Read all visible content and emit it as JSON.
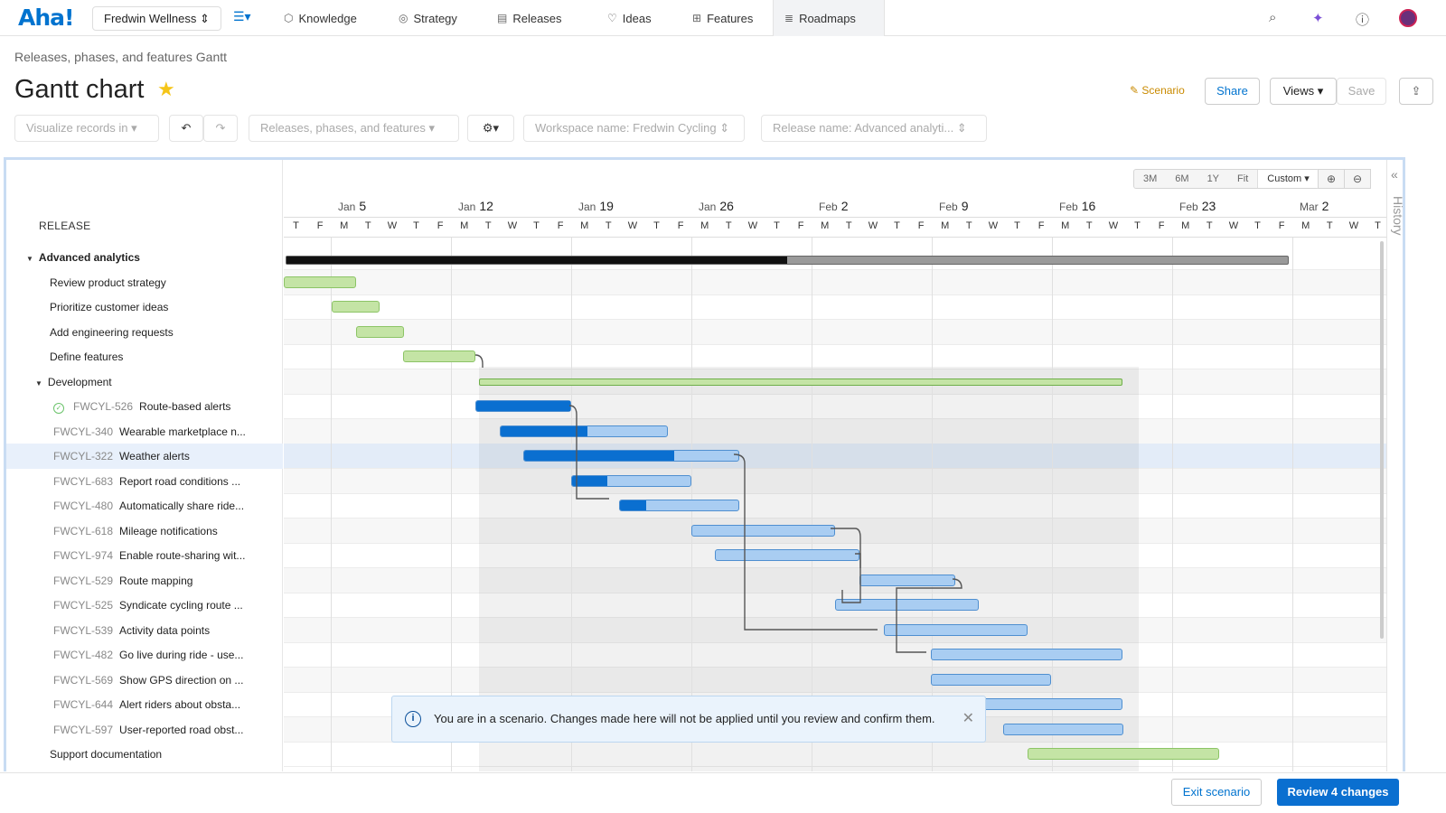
{
  "app": {
    "logo": "Aha!",
    "workspace": "Fredwin Wellness ⇕"
  },
  "nav": [
    {
      "label": "Knowledge",
      "icon": "⬡"
    },
    {
      "label": "Strategy",
      "icon": "◎"
    },
    {
      "label": "Releases",
      "icon": "▤"
    },
    {
      "label": "Ideas",
      "icon": "♡"
    },
    {
      "label": "Features",
      "icon": "⊞"
    },
    {
      "label": "Roadmaps",
      "icon": "≣"
    }
  ],
  "page": {
    "breadcrumb": "Releases, phases, and features Gantt",
    "title": "Gantt chart",
    "scenario": "Scenario",
    "share": "Share",
    "views": "Views ▾",
    "save": "Save"
  },
  "toolbar": {
    "visualize": "Visualize records in ▾",
    "records": "Releases, phases, and features ▾",
    "workspace": "Workspace name: Fredwin Cycling ⇕",
    "release": "Release name: Advanced analyti... ⇕"
  },
  "grid": {
    "header": "RELEASE",
    "zoom": [
      "3M",
      "6M",
      "1Y",
      "Fit"
    ],
    "custom": "Custom ▾",
    "history": "History"
  },
  "weeks": [
    {
      "m": "Jan",
      "d": "5"
    },
    {
      "m": "Jan",
      "d": "12"
    },
    {
      "m": "Jan",
      "d": "19"
    },
    {
      "m": "Jan",
      "d": "26"
    },
    {
      "m": "Feb",
      "d": "2"
    },
    {
      "m": "Feb",
      "d": "9"
    },
    {
      "m": "Feb",
      "d": "16"
    },
    {
      "m": "Feb",
      "d": "23"
    },
    {
      "m": "Mar",
      "d": "2"
    }
  ],
  "days": [
    "T",
    "F",
    "M",
    "T",
    "W",
    "T",
    "F",
    "M",
    "T",
    "W",
    "T",
    "F",
    "M",
    "T",
    "W",
    "T",
    "F",
    "M",
    "T",
    "W",
    "T",
    "F",
    "M",
    "T",
    "W",
    "T",
    "F",
    "M",
    "T",
    "W",
    "T",
    "F",
    "M",
    "T",
    "W",
    "T",
    "F",
    "M",
    "T",
    "W",
    "T",
    "F",
    "M",
    "T",
    "W",
    "T"
  ],
  "rows": [
    {
      "key": "",
      "label": "Advanced analytics",
      "level": 0,
      "type": "release"
    },
    {
      "key": "",
      "label": "Review product strategy",
      "level": 1,
      "type": "phase"
    },
    {
      "key": "",
      "label": "Prioritize customer ideas",
      "level": 1,
      "type": "phase"
    },
    {
      "key": "",
      "label": "Add engineering requests",
      "level": 1,
      "type": "phase"
    },
    {
      "key": "",
      "label": "Define features",
      "level": 1,
      "type": "phase"
    },
    {
      "key": "",
      "label": "Development",
      "level": 1,
      "type": "group"
    },
    {
      "key": "FWCYL-526",
      "label": "Route-based alerts",
      "level": 2,
      "type": "done"
    },
    {
      "key": "FWCYL-340",
      "label": "Wearable marketplace n...",
      "level": 2,
      "type": "feature"
    },
    {
      "key": "FWCYL-322",
      "label": "Weather alerts",
      "level": 2,
      "type": "feature",
      "selected": true
    },
    {
      "key": "FWCYL-683",
      "label": "Report road conditions ...",
      "level": 2,
      "type": "feature"
    },
    {
      "key": "FWCYL-480",
      "label": "Automatically share ride...",
      "level": 2,
      "type": "feature"
    },
    {
      "key": "FWCYL-618",
      "label": "Mileage notifications",
      "level": 2,
      "type": "feature"
    },
    {
      "key": "FWCYL-974",
      "label": "Enable route-sharing wit...",
      "level": 2,
      "type": "feature"
    },
    {
      "key": "FWCYL-529",
      "label": "Route mapping",
      "level": 2,
      "type": "feature"
    },
    {
      "key": "FWCYL-525",
      "label": "Syndicate cycling route ...",
      "level": 2,
      "type": "feature"
    },
    {
      "key": "FWCYL-539",
      "label": "Activity data points",
      "level": 2,
      "type": "feature"
    },
    {
      "key": "FWCYL-482",
      "label": "Go live during ride - use...",
      "level": 2,
      "type": "feature"
    },
    {
      "key": "FWCYL-569",
      "label": "Show GPS direction on ...",
      "level": 2,
      "type": "feature"
    },
    {
      "key": "FWCYL-644",
      "label": "Alert riders about obsta...",
      "level": 2,
      "type": "feature"
    },
    {
      "key": "FWCYL-597",
      "label": "User-reported road obst...",
      "level": 2,
      "type": "feature"
    },
    {
      "key": "",
      "label": "Support documentation",
      "level": 1,
      "type": "phase"
    }
  ],
  "toast": {
    "text": "You are in a scenario. Changes made here will not be applied until you review and confirm them."
  },
  "footer": {
    "exit": "Exit scenario",
    "review": "Review 4 changes"
  }
}
